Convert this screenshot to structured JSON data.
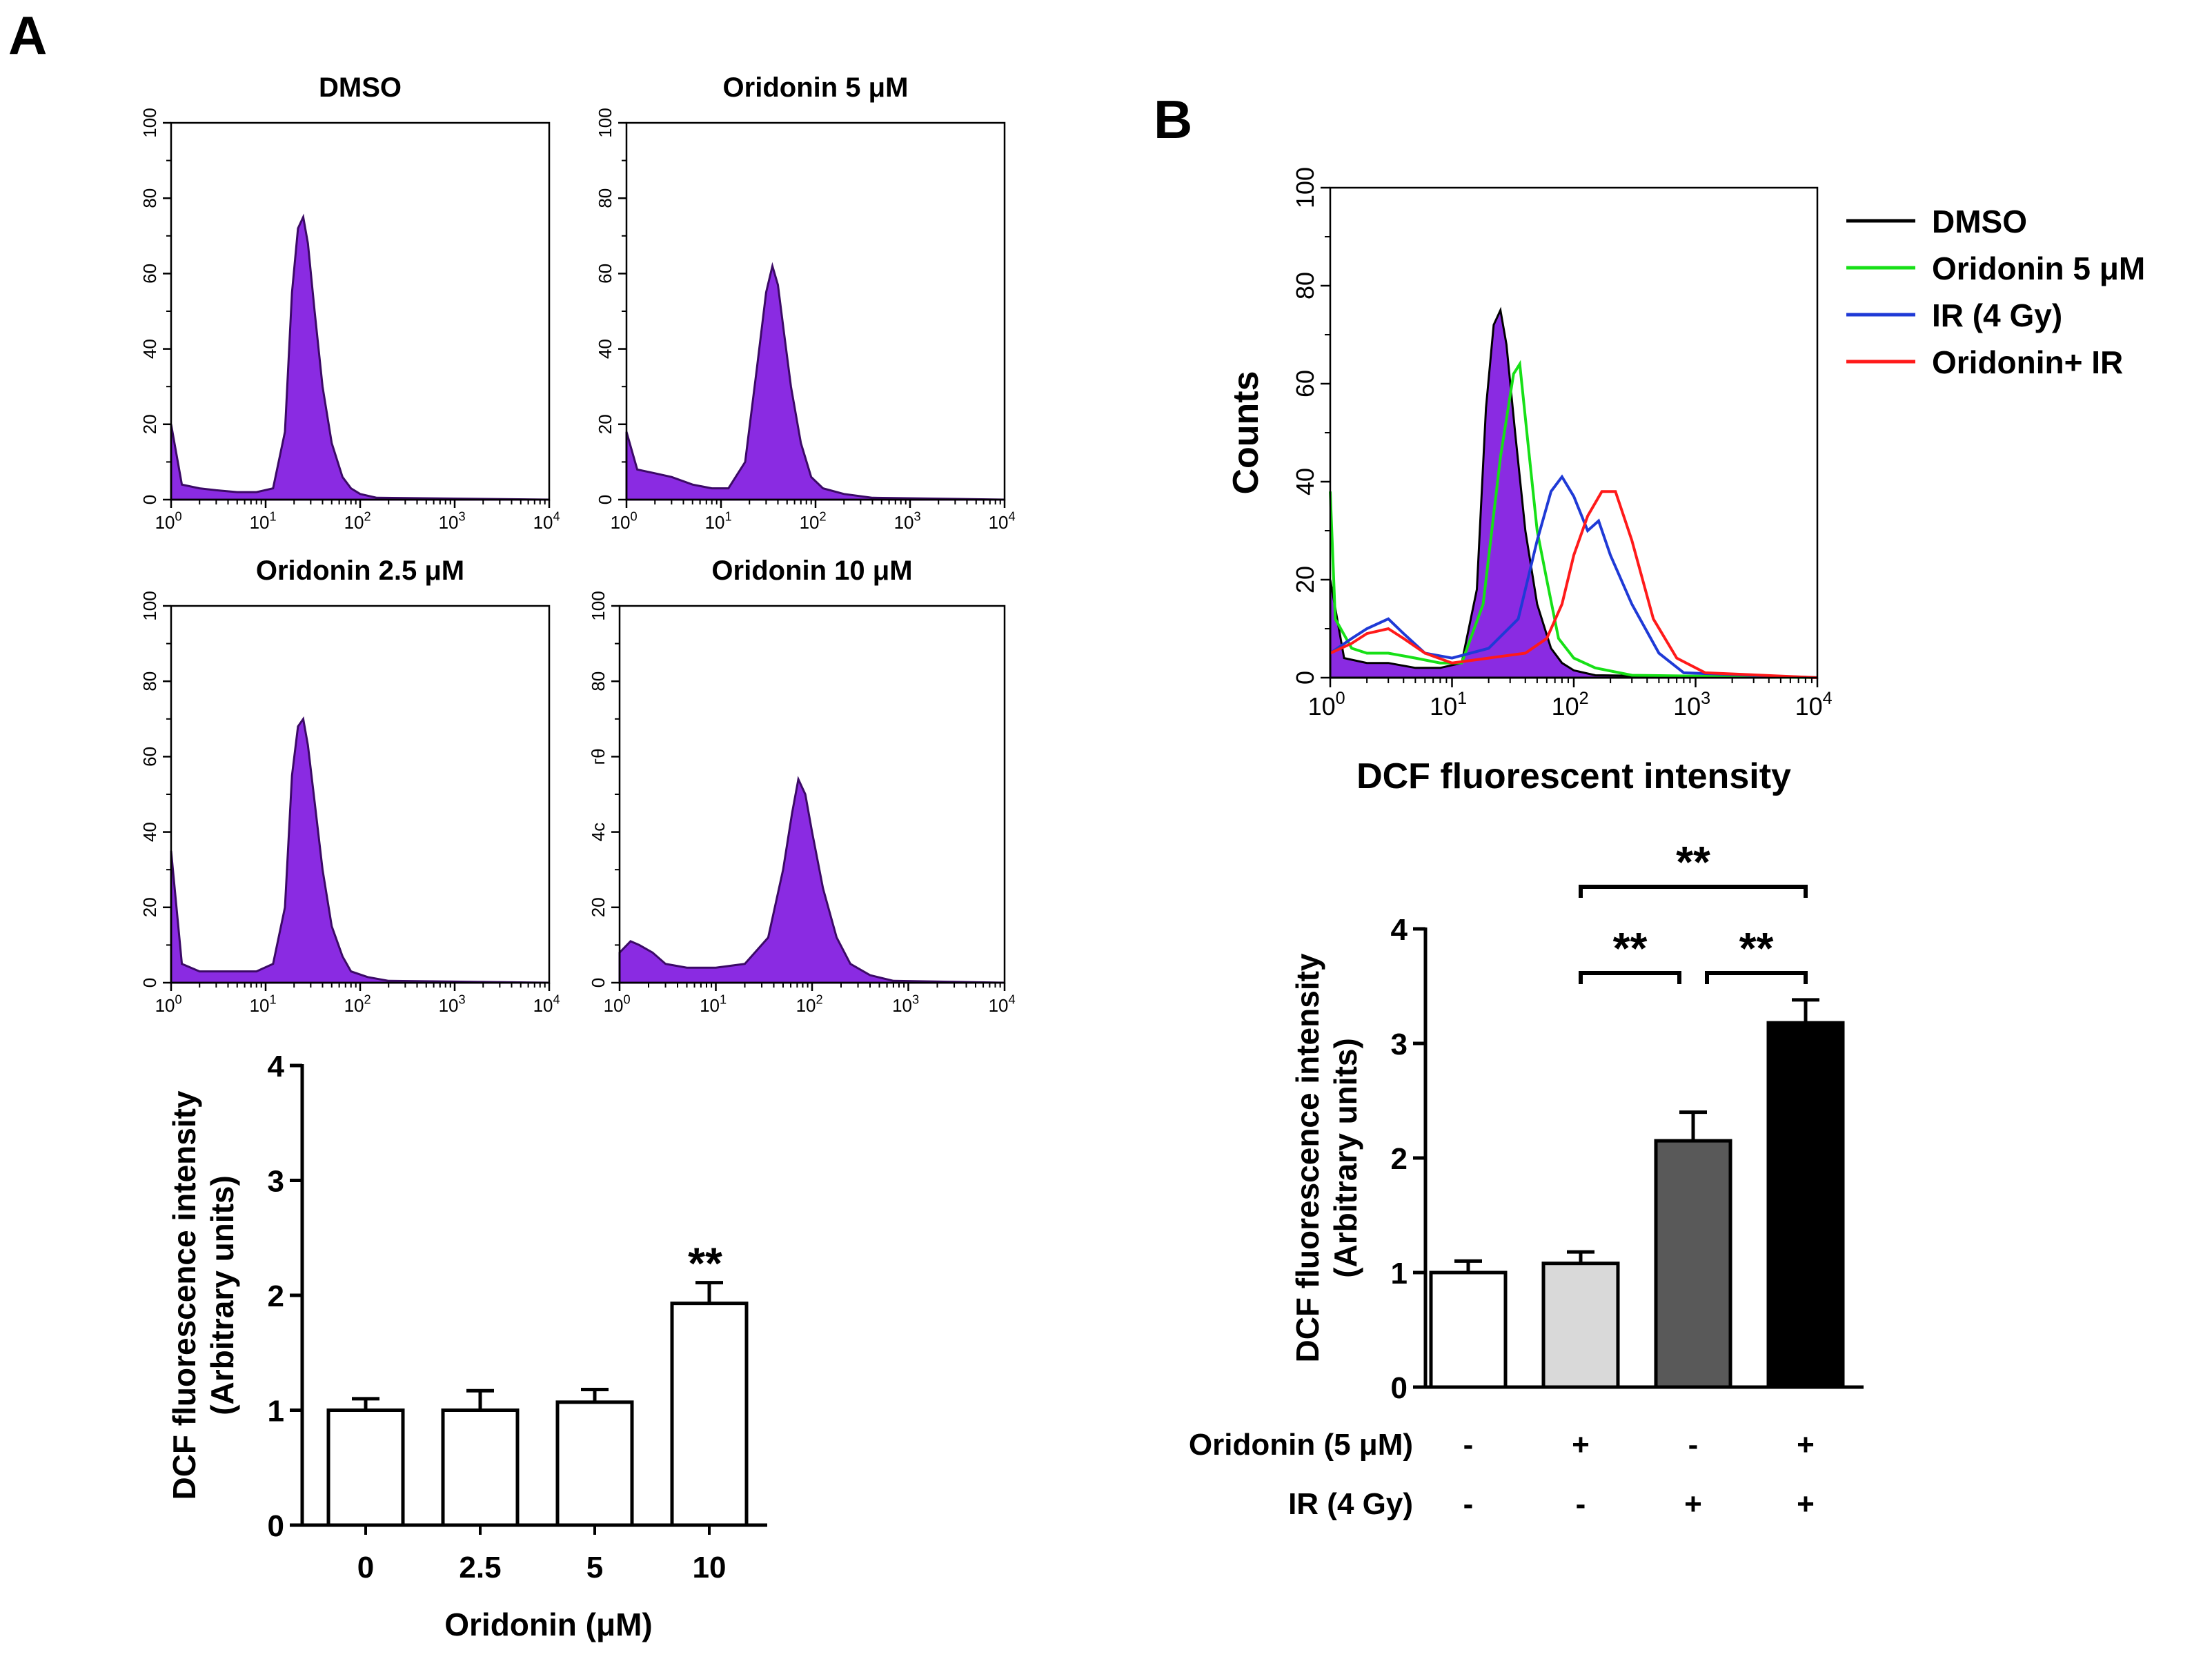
{
  "colors": {
    "purple_fill": "#8a2be2",
    "purple_edge": "#3b0a66",
    "dmso": "#000000",
    "oridonin": "#17e017",
    "ir": "#1f3ad6",
    "oridonin_ir": "#ff1a1a",
    "bar_white": "#ffffff",
    "bar_light": "#d9d9d9",
    "bar_dark": "#595959",
    "bar_black": "#000000"
  },
  "panel_labels": {
    "a": "A",
    "b": "B"
  },
  "chart_data": [
    {
      "id": "A_hist_dmso",
      "type": "area",
      "title": "DMSO",
      "x_scale": "log",
      "xlim": [
        1,
        10000
      ],
      "ylim": [
        0,
        100
      ],
      "x_tick_bases": [
        "10",
        "10",
        "10",
        "10",
        "10"
      ],
      "x_tick_exps": [
        "0",
        "1",
        "2",
        "3",
        "4"
      ],
      "y_ticks": [
        "0",
        "20",
        "40",
        "60",
        "80",
        "100"
      ],
      "x": [
        1,
        1.3,
        2,
        3,
        5,
        8,
        12,
        16,
        19,
        22,
        25,
        28,
        33,
        40,
        50,
        65,
        80,
        100,
        150,
        10000
      ],
      "y": [
        20,
        4,
        3,
        2.5,
        2,
        2,
        3,
        18,
        55,
        72,
        75,
        68,
        50,
        30,
        15,
        6,
        3,
        1.5,
        0.5,
        0
      ]
    },
    {
      "id": "A_hist_5",
      "type": "area",
      "title": "Oridonin 5 μM",
      "x_scale": "log",
      "xlim": [
        1,
        10000
      ],
      "ylim": [
        0,
        100
      ],
      "x_tick_bases": [
        "10",
        "10",
        "10",
        "10",
        "10"
      ],
      "x_tick_exps": [
        "0",
        "1",
        "2",
        "3",
        "4"
      ],
      "y_ticks": [
        "0",
        "20",
        "40",
        "60",
        "80",
        "100"
      ],
      "x": [
        1,
        1.3,
        2,
        3,
        5,
        8,
        12,
        18,
        24,
        30,
        35,
        40,
        46,
        55,
        70,
        90,
        120,
        200,
        400,
        10000
      ],
      "y": [
        18,
        8,
        7,
        6,
        4,
        3,
        3,
        10,
        35,
        55,
        62,
        57,
        45,
        30,
        15,
        6,
        3,
        1.5,
        0.5,
        0
      ]
    },
    {
      "id": "A_hist_2_5",
      "type": "area",
      "title": "Oridonin 2.5 μM",
      "x_scale": "log",
      "xlim": [
        1,
        10000
      ],
      "ylim": [
        0,
        100
      ],
      "x_tick_bases": [
        "10",
        "10",
        "10",
        "10",
        "10"
      ],
      "x_tick_exps": [
        "0",
        "1",
        "2",
        "3",
        "4"
      ],
      "y_ticks": [
        "0",
        "20",
        "40",
        "60",
        "80",
        "100"
      ],
      "x": [
        1,
        1.3,
        2,
        3,
        5,
        8,
        12,
        16,
        19,
        22,
        25,
        28,
        33,
        40,
        50,
        65,
        80,
        120,
        200,
        10000
      ],
      "y": [
        35,
        5,
        3,
        3,
        3,
        3,
        5,
        20,
        55,
        68,
        70,
        63,
        48,
        30,
        15,
        7,
        3,
        1.5,
        0.5,
        0
      ]
    },
    {
      "id": "A_hist_10",
      "type": "area",
      "title": "Oridonin 10 μM",
      "x_scale": "log",
      "xlim": [
        1,
        10000
      ],
      "ylim": [
        0,
        100
      ],
      "x_tick_bases": [
        "10",
        "10",
        "10",
        "10",
        "10"
      ],
      "x_tick_exps": [
        "0",
        "1",
        "2",
        "3",
        "4"
      ],
      "y_ticks": [
        "0",
        "20",
        "4с",
        "гθ",
        "80",
        "100"
      ],
      "x": [
        1,
        1.3,
        1.6,
        2.2,
        3,
        5,
        10,
        20,
        35,
        50,
        62,
        72,
        85,
        100,
        130,
        180,
        250,
        400,
        700,
        10000
      ],
      "y": [
        8,
        11,
        10,
        8,
        5,
        4,
        4,
        5,
        12,
        30,
        45,
        54,
        50,
        40,
        25,
        12,
        5,
        2,
        0.5,
        0
      ]
    },
    {
      "id": "A_bar",
      "type": "bar",
      "title": "",
      "categories": [
        "0",
        "2.5",
        "5",
        "10"
      ],
      "values": [
        1.0,
        1.0,
        1.07,
        1.93
      ],
      "errors": [
        0.1,
        0.17,
        0.11,
        0.18
      ],
      "significance": [
        "",
        "",
        "",
        "**"
      ],
      "xlabel": "Oridonin (μM)",
      "ylabel_lines": [
        "DCF fluorescence intensity",
        "(Arbitrary units)"
      ],
      "ylim": [
        0,
        4
      ],
      "y_ticks": [
        "0",
        "1",
        "2",
        "3",
        "4"
      ]
    },
    {
      "id": "B_hist",
      "type": "line",
      "x_scale": "log",
      "xlim": [
        1,
        10000
      ],
      "ylim": [
        0,
        100
      ],
      "x_tick_bases": [
        "10",
        "10",
        "10",
        "10",
        "10"
      ],
      "x_tick_exps": [
        "0",
        "1",
        "2",
        "3",
        "4"
      ],
      "y_ticks": [
        "0",
        "20",
        "40",
        "60",
        "80",
        "100"
      ],
      "xlabel": "DCF fluorescent intensity",
      "ylabel": "Counts",
      "legend_position": "top-right",
      "series": [
        {
          "name": "DMSO",
          "filled": true,
          "x": [
            1,
            1.3,
            2,
            3,
            5,
            8,
            12,
            16,
            19,
            22,
            25,
            28,
            33,
            40,
            50,
            65,
            80,
            100,
            150,
            10000
          ],
          "y": [
            20,
            4,
            3,
            3,
            2,
            2,
            3,
            18,
            55,
            72,
            75,
            68,
            50,
            30,
            15,
            6,
            3,
            1.5,
            0.5,
            0
          ]
        },
        {
          "name": "Oridonin  5 μM",
          "filled": false,
          "x": [
            1,
            1.1,
            1.5,
            2,
            3,
            5,
            8,
            12,
            18,
            25,
            32,
            36,
            42,
            50,
            60,
            75,
            100,
            150,
            300,
            10000
          ],
          "y": [
            38,
            12,
            6,
            5,
            5,
            4,
            3,
            3,
            15,
            45,
            62,
            64,
            48,
            30,
            20,
            8,
            4,
            2,
            0.5,
            0
          ]
        },
        {
          "name": "IR (4 Gy)",
          "filled": false,
          "x": [
            1,
            1.5,
            2,
            3,
            4,
            6,
            10,
            20,
            35,
            50,
            65,
            80,
            100,
            130,
            160,
            200,
            300,
            500,
            800,
            10000
          ],
          "y": [
            5,
            8,
            10,
            12,
            9,
            5,
            4,
            6,
            12,
            28,
            38,
            41,
            37,
            30,
            32,
            25,
            15,
            5,
            1,
            0
          ]
        },
        {
          "name": "Oridonin+ IR",
          "filled": false,
          "x": [
            1,
            1.5,
            2,
            3,
            4,
            6,
            10,
            20,
            40,
            60,
            80,
            100,
            130,
            170,
            220,
            300,
            450,
            700,
            1200,
            10000
          ],
          "y": [
            5,
            7,
            9,
            10,
            8,
            5,
            3,
            4,
            5,
            8,
            15,
            25,
            33,
            38,
            38,
            28,
            12,
            4,
            1,
            0
          ]
        }
      ]
    },
    {
      "id": "B_bar",
      "type": "bar",
      "categories": [
        "",
        "",
        "",
        ""
      ],
      "values": [
        1.0,
        1.08,
        2.15,
        3.18
      ],
      "errors": [
        0.1,
        0.1,
        0.25,
        0.2
      ],
      "ylabel_lines": [
        "DCF fluorescence intensity",
        "(Arbitrary units)"
      ],
      "ylim": [
        0,
        4
      ],
      "y_ticks": [
        "0",
        "1",
        "2",
        "3",
        "4"
      ],
      "condition_rows": [
        {
          "label": "Oridonin (5 μM)",
          "values": [
            "-",
            "+",
            "-",
            "+"
          ]
        },
        {
          "label": "IR (4 Gy)",
          "values": [
            "-",
            "-",
            "+",
            "+"
          ]
        }
      ],
      "comparisons": [
        {
          "from": 1,
          "to": 3,
          "label": "**"
        },
        {
          "from": 1,
          "to": 2,
          "label": "**"
        },
        {
          "from": 2,
          "to": 3,
          "label": "**"
        }
      ]
    }
  ]
}
